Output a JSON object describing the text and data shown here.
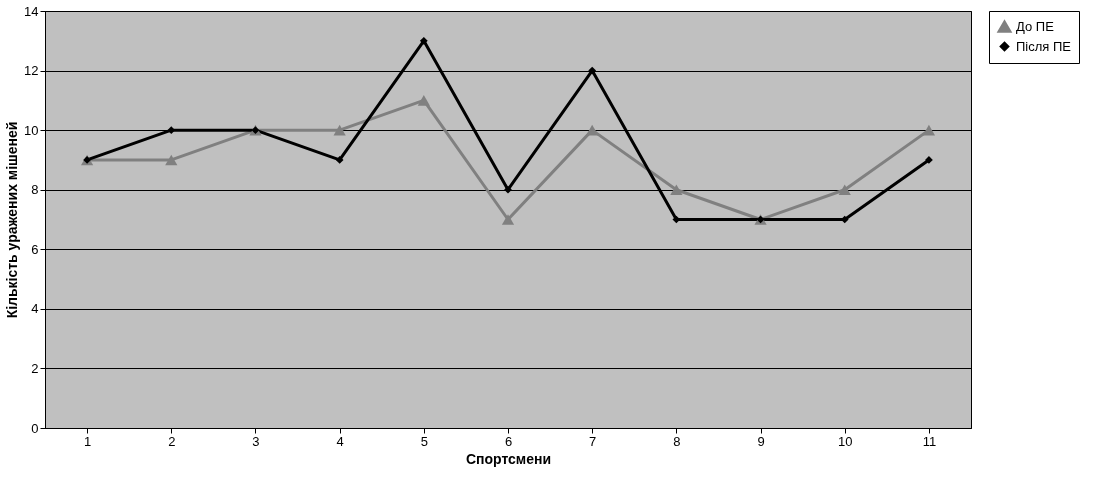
{
  "chart_data": {
    "type": "line",
    "xlabel": "Спортсмени",
    "ylabel": "Кількість уражених мішеней",
    "categories": [
      "1",
      "2",
      "3",
      "4",
      "5",
      "6",
      "7",
      "8",
      "9",
      "10",
      "11"
    ],
    "series": [
      {
        "name": "До ПЕ",
        "color": "#808080",
        "marker": "triangle",
        "values": [
          9,
          9,
          10,
          10,
          11,
          7,
          10,
          8,
          7,
          8,
          10
        ]
      },
      {
        "name": "Після ПЕ",
        "color": "#000000",
        "marker": "diamond",
        "values": [
          9,
          10,
          10,
          9,
          13,
          8,
          12,
          7,
          7,
          7,
          9
        ]
      }
    ],
    "ylim": [
      0,
      14
    ],
    "yticks": [
      0,
      2,
      4,
      6,
      8,
      10,
      12,
      14
    ],
    "grid": "y",
    "legend": "right",
    "line_style": "solid"
  }
}
